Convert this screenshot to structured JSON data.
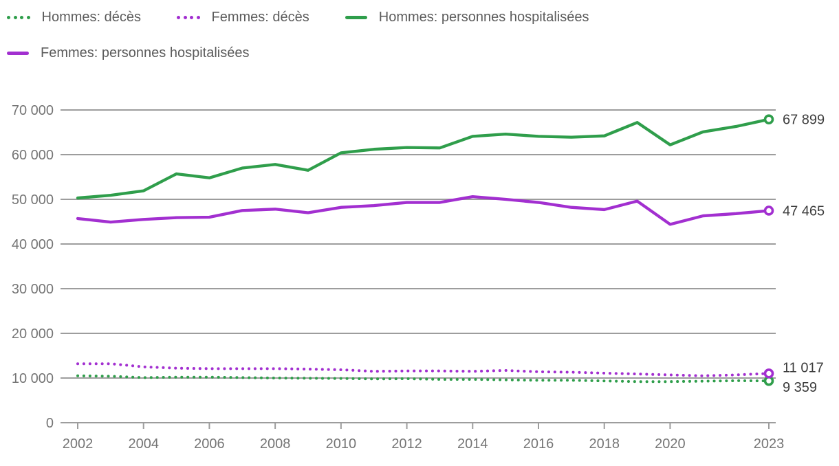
{
  "legend": {
    "items": [
      {
        "id": "hommes-deces",
        "label": "Hommes: décès",
        "color": "#2f9e4b",
        "line_style": "dotted",
        "row": 1
      },
      {
        "id": "femmes-deces",
        "label": "Femmes: décès",
        "color": "#a22fd0",
        "line_style": "dotted",
        "row": 1
      },
      {
        "id": "hommes-hospitalisees",
        "label": "Hommes: personnes hospitalisées",
        "color": "#2f9e4b",
        "line_style": "solid",
        "row": 1
      },
      {
        "id": "femmes-hospitalisees",
        "label": "Femmes: personnes hospitalisées",
        "color": "#a22fd0",
        "line_style": "solid",
        "row": 2
      }
    ]
  },
  "chart_data": {
    "type": "line",
    "x": [
      2002,
      2003,
      2004,
      2005,
      2006,
      2007,
      2008,
      2009,
      2010,
      2011,
      2012,
      2013,
      2014,
      2015,
      2016,
      2017,
      2018,
      2019,
      2020,
      2021,
      2022,
      2023
    ],
    "series": [
      {
        "id": "hommes-deces",
        "name": "Hommes: décès",
        "color": "#2f9e4b",
        "line_style": "dotted",
        "values": [
          10500,
          10400,
          10100,
          10200,
          10200,
          10100,
          10000,
          9950,
          9900,
          9800,
          9850,
          9700,
          9700,
          9600,
          9500,
          9500,
          9350,
          9200,
          9200,
          9300,
          9400,
          9359
        ],
        "end_label": "9 359",
        "end_label_dy": 9
      },
      {
        "id": "femmes-deces",
        "name": "Femmes: décès",
        "color": "#a22fd0",
        "line_style": "dotted",
        "values": [
          13200,
          13200,
          12500,
          12200,
          12100,
          12100,
          12100,
          12000,
          11850,
          11500,
          11600,
          11600,
          11500,
          11700,
          11400,
          11300,
          11100,
          10900,
          10700,
          10500,
          10700,
          11017
        ],
        "end_label": "11 017",
        "end_label_dy": -9
      },
      {
        "id": "hommes-hospitalisees",
        "name": "Hommes: personnes hospitalisées",
        "color": "#2f9e4b",
        "line_style": "solid",
        "values": [
          50300,
          50900,
          51900,
          55700,
          54800,
          57000,
          57800,
          56500,
          60400,
          61200,
          61600,
          61500,
          64100,
          64600,
          64100,
          63900,
          64200,
          67200,
          62200,
          65100,
          66300,
          67899
        ],
        "end_label": "67 899",
        "end_label_dy": 0
      },
      {
        "id": "femmes-hospitalisees",
        "name": "Femmes: personnes hospitalisées",
        "color": "#a22fd0",
        "line_style": "solid",
        "values": [
          45700,
          44900,
          45500,
          45900,
          46000,
          47500,
          47800,
          47000,
          48200,
          48600,
          49300,
          49300,
          50600,
          50000,
          49300,
          48200,
          47700,
          49600,
          44400,
          46300,
          46800,
          47465
        ],
        "end_label": "47 465",
        "end_label_dy": 0
      }
    ],
    "x_axis": {
      "tick_years": [
        2002,
        2004,
        2006,
        2008,
        2010,
        2012,
        2014,
        2016,
        2018,
        2020,
        2023
      ]
    },
    "y_axis": {
      "ticks": [
        0,
        10000,
        20000,
        30000,
        40000,
        50000,
        60000,
        70000
      ],
      "tick_labels": [
        "0",
        "10 000",
        "20 000",
        "30 000",
        "40 000",
        "50 000",
        "60 000",
        "70 000"
      ],
      "range": [
        0,
        70000
      ]
    },
    "grid": "horizontal",
    "legend_position": "top-left",
    "colors": {
      "grid": "#9d9d9d",
      "axis_text": "#757575",
      "end_label_text": "#3d3d3d",
      "legend_text": "#5c5c5c",
      "background": "#ffffff"
    }
  }
}
